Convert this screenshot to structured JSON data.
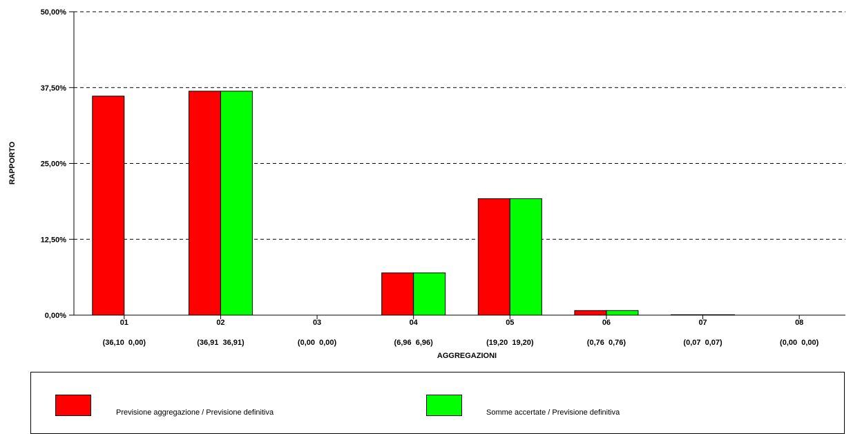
{
  "chart_data": {
    "type": "bar",
    "xlabel": "AGGREGAZIONI",
    "ylabel": "RAPPORTO",
    "ylim": [
      0,
      50
    ],
    "yticks": [
      "0,00%",
      "12,50%",
      "25,00%",
      "37,50%",
      "50,00%"
    ],
    "grid": "horizontal dashed",
    "categories": [
      "01",
      "02",
      "03",
      "04",
      "05",
      "06",
      "07",
      "08"
    ],
    "category_sublabels": [
      "(36,10  0,00)",
      "(36,91  36,91)",
      "(0,00  0,00)",
      "(6,96  6,96)",
      "(19,20  19,20)",
      "(0,76  0,76)",
      "(0,07  0,07)",
      "(0,00  0,00)"
    ],
    "series": [
      {
        "name": "Previsione aggregazione / Previsione definitiva",
        "color": "#ff0000",
        "values": [
          36.1,
          36.91,
          0.0,
          6.96,
          19.2,
          0.76,
          0.07,
          0.0
        ]
      },
      {
        "name": "Somme accertate / Previsione definitiva",
        "color": "#00ff00",
        "values": [
          0.0,
          36.91,
          0.0,
          6.96,
          19.2,
          0.76,
          0.07,
          0.0
        ]
      }
    ],
    "legend_position": "bottom"
  }
}
